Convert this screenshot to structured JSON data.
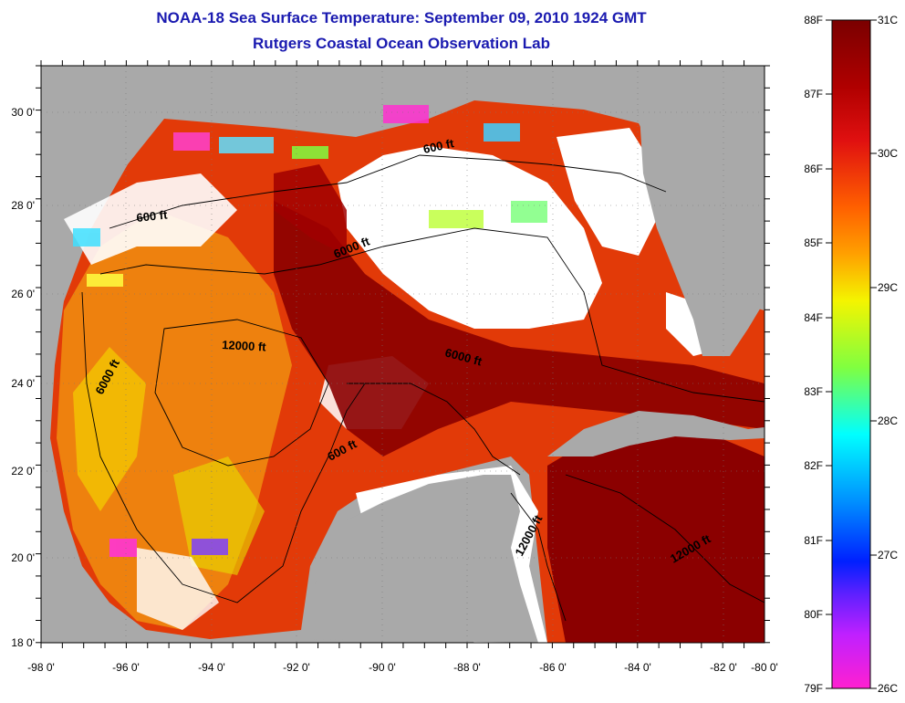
{
  "title": "NOAA-18 Sea Surface Temperature:  September 09, 2010 1924 GMT",
  "subtitle": "Rutgers Coastal Ocean Observation Lab",
  "axes": {
    "x_ticks": [
      "-98 0'",
      "-96 0'",
      "-94 0'",
      "-92 0'",
      "-90 0'",
      "-88 0'",
      "-86 0'",
      "-84 0'",
      "-82 0'",
      "-80 0'"
    ],
    "y_ticks": [
      "30 0'",
      "28 0'",
      "26 0'",
      "24 0'",
      "22 0'",
      "20 0'",
      "18 0'"
    ]
  },
  "contours": [
    {
      "label": "600 ft"
    },
    {
      "label": "600 ft"
    },
    {
      "label": "6000 ft"
    },
    {
      "label": "12000 ft"
    },
    {
      "label": "6000 ft"
    },
    {
      "label": "6000 ft"
    },
    {
      "label": "600 ft"
    },
    {
      "label": "12000 ft"
    },
    {
      "label": "12000 ft"
    }
  ],
  "colorbar": {
    "fahrenheit": [
      "88F",
      "87F",
      "86F",
      "85F",
      "84F",
      "83F",
      "82F",
      "81F",
      "80F",
      "79F"
    ],
    "celsius": [
      "31C",
      "30C",
      "29C",
      "28C",
      "27C",
      "26C"
    ],
    "colors": {
      "top": "#7a0000",
      "red": "#e01010",
      "orange": "#ff8000",
      "yellow": "#f4f400",
      "green": "#60ff60",
      "cyan": "#00ffff",
      "blue": "#0040ff",
      "violet": "#8020ff",
      "magenta": "#ff20d0"
    }
  },
  "colors": {
    "land": "#a9a9a9",
    "cloud": "#ffffff",
    "warm": "#8b0000",
    "title": "#1a1ab0"
  }
}
